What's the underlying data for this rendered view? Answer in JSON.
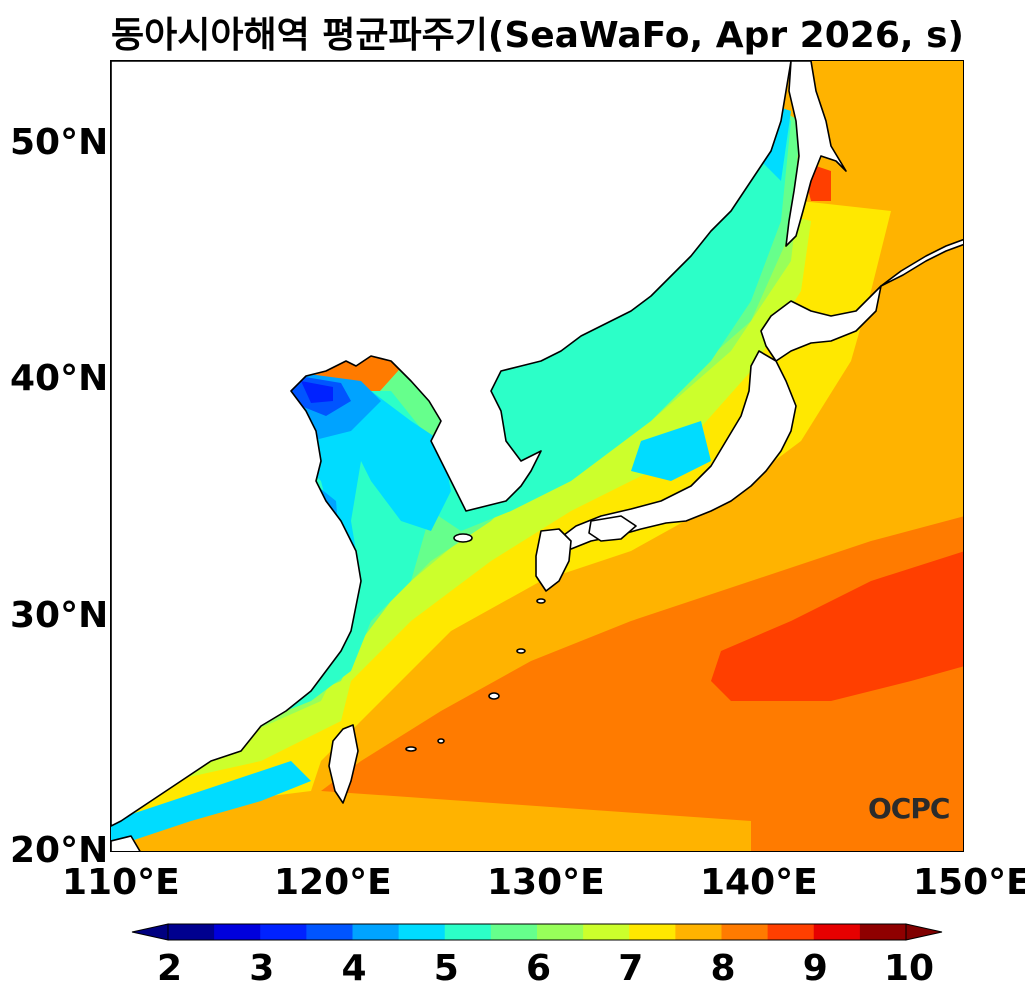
{
  "title": "동아시아해역 평균파주기(SeaWaFo, Apr 2026, s)",
  "logo_text": "OCPC",
  "lat_labels": [
    "50°N",
    "40°N",
    "30°N",
    "20°N"
  ],
  "lon_labels": [
    "110°E",
    "120°E",
    "130°E",
    "140°E",
    "150°E"
  ],
  "colorbar": {
    "ticks": [
      "2",
      "3",
      "4",
      "5",
      "6",
      "7",
      "8",
      "9",
      "10"
    ],
    "colors": [
      "#00008f",
      "#0000dd",
      "#0022ff",
      "#0055ff",
      "#00a3ff",
      "#00dcff",
      "#2cffc8",
      "#66ff8c",
      "#98ff5a",
      "#ccff2c",
      "#ffe800",
      "#ffb300",
      "#ff7b00",
      "#ff3f00",
      "#e60000",
      "#8f0000"
    ],
    "min_extend_color": "#000080",
    "max_extend_color": "#800000",
    "levels": [
      2,
      2.5,
      3,
      3.5,
      4,
      4.5,
      5,
      5.5,
      6,
      6.5,
      7,
      7.5,
      8,
      8.5,
      9,
      9.5,
      10
    ]
  },
  "map_extent": {
    "lon": [
      110,
      150
    ],
    "lat": [
      20,
      53.5
    ]
  },
  "colors": {
    "coastline": "#000000",
    "land": "#ffffff"
  }
}
